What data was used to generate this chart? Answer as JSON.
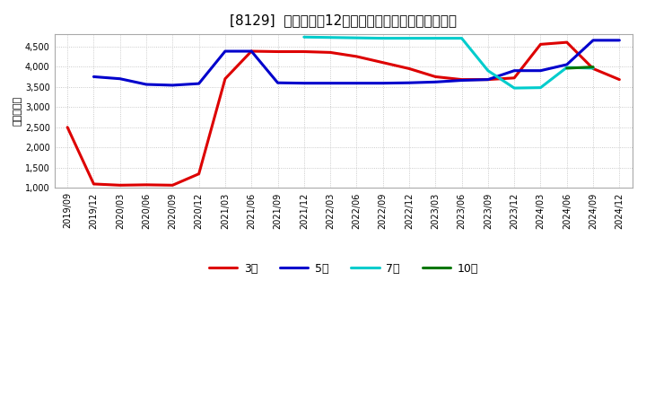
{
  "title": "[8129]  当期純利益12か月移動合計の標準偏差の推移",
  "ylabel": "（百万円）",
  "ylim": [
    1000,
    4800
  ],
  "yticks": [
    1000,
    1500,
    2000,
    2500,
    3000,
    3500,
    4000,
    4500
  ],
  "background_color": "#ffffff",
  "grid_color": "#bbbbbb",
  "series": {
    "3year": {
      "color": "#dd0000",
      "label": "3年",
      "dates": [
        "2019/09",
        "2019/12",
        "2020/03",
        "2020/06",
        "2020/09",
        "2020/12",
        "2021/03",
        "2021/06",
        "2021/09",
        "2021/12",
        "2022/03",
        "2022/06",
        "2022/09",
        "2022/12",
        "2023/03",
        "2023/06",
        "2023/09",
        "2023/12",
        "2024/03",
        "2024/06",
        "2024/09",
        "2024/12"
      ],
      "values": [
        2500,
        1100,
        1070,
        1080,
        1070,
        1350,
        3700,
        4380,
        4370,
        4370,
        4350,
        4250,
        4100,
        3950,
        3750,
        3680,
        3680,
        3720,
        4550,
        4600,
        3950,
        3680
      ]
    },
    "5year": {
      "color": "#0000cc",
      "label": "5年",
      "dates": [
        "2019/12",
        "2020/03",
        "2020/06",
        "2020/09",
        "2020/12",
        "2021/03",
        "2021/06",
        "2021/09",
        "2021/12",
        "2022/03",
        "2022/06",
        "2022/09",
        "2022/12",
        "2023/03",
        "2023/06",
        "2023/09",
        "2023/12",
        "2024/03",
        "2024/06",
        "2024/09",
        "2024/12"
      ],
      "values": [
        3750,
        3700,
        3560,
        3540,
        3580,
        4380,
        4380,
        3600,
        3590,
        3590,
        3590,
        3590,
        3600,
        3620,
        3660,
        3680,
        3900,
        3900,
        4050,
        4650,
        4650
      ]
    },
    "7year": {
      "color": "#00cccc",
      "label": "7年",
      "dates": [
        "2021/12",
        "2022/03",
        "2022/06",
        "2022/09",
        "2022/12",
        "2023/03",
        "2023/06",
        "2023/09",
        "2023/12",
        "2024/03",
        "2024/06",
        "2024/09"
      ],
      "values": [
        4730,
        4720,
        4710,
        4700,
        4700,
        4700,
        4700,
        3900,
        3470,
        3480,
        3980,
        3960
      ]
    },
    "10year": {
      "color": "#007700",
      "label": "10年",
      "dates": [
        "2024/06",
        "2024/09"
      ],
      "values": [
        3960,
        3990
      ]
    }
  },
  "xtick_labels": [
    "2019/09",
    "2019/12",
    "2020/03",
    "2020/06",
    "2020/09",
    "2020/12",
    "2021/03",
    "2021/06",
    "2021/09",
    "2021/12",
    "2022/03",
    "2022/06",
    "2022/09",
    "2022/12",
    "2023/03",
    "2023/06",
    "2023/09",
    "2023/12",
    "2024/03",
    "2024/06",
    "2024/09",
    "2024/12"
  ]
}
